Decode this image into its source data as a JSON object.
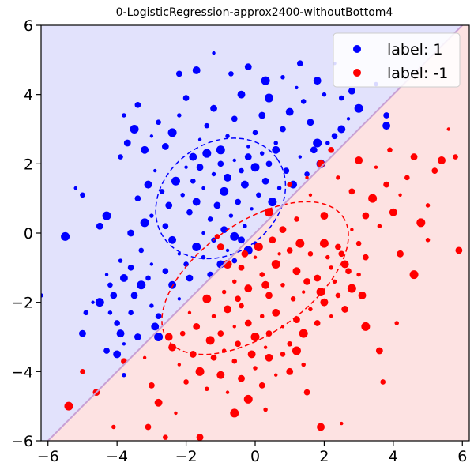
{
  "chart_data": {
    "type": "scatter",
    "title": "0-LogisticRegression-approx2400-withoutBottom4",
    "xlim": [
      -6.2,
      6.2
    ],
    "ylim": [
      -6,
      6
    ],
    "xticks": [
      -6,
      -4,
      -2,
      0,
      2,
      4,
      6
    ],
    "yticks": [
      -6,
      -4,
      -2,
      0,
      2,
      4,
      6
    ],
    "xtick_labels": [
      "−6",
      "−4",
      "−2",
      "0",
      "2",
      "4",
      "6"
    ],
    "ytick_labels": [
      "−6",
      "−4",
      "−2",
      "0",
      "2",
      "4",
      "6"
    ],
    "grid": false,
    "legend_position": "top-right",
    "decision_boundary": {
      "x": [
        -6.2,
        6.2
      ],
      "y": [
        -6.2,
        6.2
      ],
      "color": "#c8a0d4"
    },
    "regions": [
      {
        "side": "upper-left",
        "color": "#e2e2fc"
      },
      {
        "side": "lower-right",
        "color": "#fde2e2"
      }
    ],
    "series": [
      {
        "name": "label: 1",
        "color": "#0000ff",
        "center": [
          -1.0,
          1.0
        ],
        "ellipse": {
          "cx": -1.0,
          "cy": 1.0,
          "rx": 2.0,
          "ry": 1.6,
          "angle_deg": 35
        },
        "points": [
          [
            -5.2,
            1.3
          ],
          [
            -5.0,
            1.1
          ],
          [
            -4.5,
            0.2
          ],
          [
            -4.3,
            0.5
          ],
          [
            -3.9,
            -0.8
          ],
          [
            -3.6,
            -1.0
          ],
          [
            -3.8,
            -1.3
          ],
          [
            -4.3,
            -1.2
          ],
          [
            -4.2,
            -1.5
          ],
          [
            -4.1,
            -1.8
          ],
          [
            -4.5,
            -2.0
          ],
          [
            -4.2,
            -2.3
          ],
          [
            -4.0,
            -2.6
          ],
          [
            -3.9,
            -2.9
          ],
          [
            -4.7,
            -2.0
          ],
          [
            -4.9,
            -2.3
          ],
          [
            -5.0,
            -2.9
          ],
          [
            -5.5,
            -0.1
          ],
          [
            -6.2,
            -1.8
          ],
          [
            -4.3,
            -3.4
          ],
          [
            -4.0,
            -3.5
          ],
          [
            -3.8,
            -3.2
          ],
          [
            -3.6,
            -2.3
          ],
          [
            -3.5,
            -1.8
          ],
          [
            -3.3,
            -1.5
          ],
          [
            -3.0,
            -2.1
          ],
          [
            -2.8,
            -2.4
          ],
          [
            -2.9,
            -2.7
          ],
          [
            -3.0,
            -0.9
          ],
          [
            -3.3,
            -0.5
          ],
          [
            -3.6,
            0.0
          ],
          [
            -3.2,
            0.3
          ],
          [
            -3.0,
            0.5
          ],
          [
            -2.6,
            0.2
          ],
          [
            -2.4,
            -0.2
          ],
          [
            -2.2,
            -0.6
          ],
          [
            -2.0,
            -0.9
          ],
          [
            -1.9,
            -1.3
          ],
          [
            -1.7,
            -0.4
          ],
          [
            -1.5,
            -0.7
          ],
          [
            -1.3,
            -1.2
          ],
          [
            -1.0,
            -0.9
          ],
          [
            -0.8,
            -0.5
          ],
          [
            -0.6,
            -0.8
          ],
          [
            -0.4,
            -0.2
          ],
          [
            -0.2,
            -0.5
          ],
          [
            0.0,
            -0.3
          ],
          [
            -3.4,
            1.0
          ],
          [
            -3.1,
            1.4
          ],
          [
            -2.9,
            1.8
          ],
          [
            -2.7,
            1.2
          ],
          [
            -2.5,
            0.8
          ],
          [
            -2.3,
            1.5
          ],
          [
            -2.1,
            1.1
          ],
          [
            -1.9,
            0.6
          ],
          [
            -1.7,
            0.9
          ],
          [
            -1.5,
            1.3
          ],
          [
            -1.3,
            0.4
          ],
          [
            -1.1,
            0.8
          ],
          [
            -0.9,
            1.2
          ],
          [
            -0.7,
            0.5
          ],
          [
            -0.5,
            0.9
          ],
          [
            -0.3,
            1.4
          ],
          [
            -0.1,
            0.7
          ],
          [
            0.1,
            1.1
          ],
          [
            0.3,
            1.5
          ],
          [
            0.5,
            0.9
          ],
          [
            0.7,
            1.3
          ],
          [
            0.9,
            1.8
          ],
          [
            1.1,
            1.4
          ],
          [
            1.3,
            2.2
          ],
          [
            1.5,
            1.7
          ],
          [
            1.7,
            2.4
          ],
          [
            1.9,
            2.0
          ],
          [
            2.1,
            2.6
          ],
          [
            2.3,
            2.8
          ],
          [
            2.5,
            3.0
          ],
          [
            2.7,
            3.3
          ],
          [
            -3.9,
            2.2
          ],
          [
            -3.7,
            2.6
          ],
          [
            -3.5,
            3.0
          ],
          [
            -3.8,
            3.4
          ],
          [
            -3.4,
            3.7
          ],
          [
            -3.2,
            2.4
          ],
          [
            -3.0,
            2.8
          ],
          [
            -2.8,
            3.2
          ],
          [
            -2.6,
            2.5
          ],
          [
            -2.4,
            2.9
          ],
          [
            -2.2,
            3.4
          ],
          [
            -2.0,
            3.9
          ],
          [
            -1.8,
            2.2
          ],
          [
            -1.6,
            2.7
          ],
          [
            -1.4,
            3.1
          ],
          [
            -1.2,
            3.6
          ],
          [
            -1.0,
            2.4
          ],
          [
            -0.8,
            2.8
          ],
          [
            -0.6,
            3.3
          ],
          [
            -0.4,
            4.0
          ],
          [
            -0.2,
            2.5
          ],
          [
            0.0,
            2.9
          ],
          [
            0.2,
            3.4
          ],
          [
            0.4,
            3.9
          ],
          [
            0.6,
            2.6
          ],
          [
            0.8,
            3.0
          ],
          [
            1.0,
            3.5
          ],
          [
            1.2,
            4.2
          ],
          [
            1.4,
            3.8
          ],
          [
            1.6,
            3.2
          ],
          [
            1.8,
            2.6
          ],
          [
            2.0,
            4.0
          ],
          [
            -2.2,
            4.6
          ],
          [
            -1.7,
            4.7
          ],
          [
            -1.2,
            5.2
          ],
          [
            -0.7,
            4.6
          ],
          [
            -0.2,
            4.8
          ],
          [
            0.3,
            4.4
          ],
          [
            0.8,
            4.5
          ],
          [
            1.3,
            4.9
          ],
          [
            1.8,
            4.4
          ],
          [
            2.3,
            4.9
          ],
          [
            2.5,
            3.9
          ],
          [
            2.8,
            4.1
          ],
          [
            3.0,
            3.6
          ],
          [
            3.5,
            4.3
          ],
          [
            3.8,
            3.4
          ],
          [
            3.8,
            3.1
          ],
          [
            -2.0,
            1.9
          ],
          [
            -1.8,
            1.5
          ],
          [
            -1.6,
            1.9
          ],
          [
            -1.4,
            2.3
          ],
          [
            -1.2,
            1.7
          ],
          [
            -1.0,
            2.0
          ],
          [
            -0.8,
            1.6
          ],
          [
            -0.6,
            2.1
          ],
          [
            -0.4,
            1.8
          ],
          [
            -0.2,
            2.2
          ],
          [
            0.0,
            1.9
          ],
          [
            0.2,
            2.3
          ],
          [
            0.4,
            2.0
          ],
          [
            0.6,
            2.4
          ],
          [
            -1.5,
            0.0
          ],
          [
            -1.2,
            -0.2
          ],
          [
            -0.9,
            0.1
          ],
          [
            -0.6,
            -0.1
          ],
          [
            -0.3,
            0.2
          ],
          [
            -2.6,
            -1.1
          ],
          [
            -2.4,
            -1.5
          ],
          [
            -2.2,
            -1.9
          ],
          [
            -3.1,
            -1.3
          ],
          [
            -3.4,
            -3.0
          ],
          [
            -2.8,
            -3.0
          ],
          [
            -3.8,
            -4.1
          ]
        ]
      },
      {
        "name": "label: -1",
        "color": "#ff0000",
        "center": [
          0.0,
          -1.3
        ],
        "ellipse": {
          "cx": 0.0,
          "cy": -1.3,
          "rx": 3.1,
          "ry": 1.6,
          "angle_deg": 35
        },
        "points": [
          [
            -1.0,
            -0.4
          ],
          [
            -0.8,
            -0.9
          ],
          [
            -0.6,
            -1.4
          ],
          [
            -0.4,
            -1.0
          ],
          [
            -0.2,
            -1.6
          ],
          [
            0.0,
            -0.7
          ],
          [
            0.2,
            -1.2
          ],
          [
            0.4,
            -1.8
          ],
          [
            0.6,
            -0.9
          ],
          [
            0.8,
            -1.5
          ],
          [
            1.0,
            -0.5
          ],
          [
            1.2,
            -1.1
          ],
          [
            1.4,
            -1.7
          ],
          [
            1.6,
            -0.6
          ],
          [
            1.8,
            -1.3
          ],
          [
            2.0,
            -0.3
          ],
          [
            2.2,
            -1.0
          ],
          [
            2.4,
            -0.4
          ],
          [
            2.6,
            -0.9
          ],
          [
            2.8,
            0.1
          ],
          [
            3.0,
            -0.3
          ],
          [
            3.2,
            0.5
          ],
          [
            3.4,
            1.0
          ],
          [
            3.6,
            0.2
          ],
          [
            3.8,
            1.4
          ],
          [
            4.0,
            0.6
          ],
          [
            4.2,
            1.1
          ],
          [
            4.4,
            1.6
          ],
          [
            4.6,
            2.2
          ],
          [
            4.8,
            0.3
          ],
          [
            5.0,
            -0.2
          ],
          [
            5.2,
            1.8
          ],
          [
            5.4,
            2.1
          ],
          [
            5.6,
            3.0
          ],
          [
            5.8,
            2.2
          ],
          [
            5.9,
            -0.5
          ],
          [
            -1.4,
            -1.9
          ],
          [
            -1.2,
            -2.4
          ],
          [
            -1.0,
            -2.9
          ],
          [
            -0.8,
            -2.2
          ],
          [
            -0.6,
            -2.7
          ],
          [
            -0.4,
            -2.1
          ],
          [
            -0.2,
            -2.6
          ],
          [
            0.0,
            -3.0
          ],
          [
            0.2,
            -2.4
          ],
          [
            0.4,
            -2.9
          ],
          [
            0.6,
            -2.3
          ],
          [
            0.8,
            -2.7
          ],
          [
            1.0,
            -3.2
          ],
          [
            1.2,
            -2.5
          ],
          [
            1.4,
            -2.9
          ],
          [
            1.6,
            -2.2
          ],
          [
            1.8,
            -2.6
          ],
          [
            2.0,
            -2.0
          ],
          [
            2.2,
            -2.4
          ],
          [
            2.4,
            -1.8
          ],
          [
            2.6,
            -2.2
          ],
          [
            2.8,
            -1.6
          ],
          [
            3.0,
            -1.2
          ],
          [
            3.2,
            -0.7
          ],
          [
            -2.4,
            -3.3
          ],
          [
            -2.2,
            -3.8
          ],
          [
            -2.0,
            -4.3
          ],
          [
            -1.8,
            -3.5
          ],
          [
            -1.6,
            -4.0
          ],
          [
            -1.4,
            -4.5
          ],
          [
            -1.2,
            -3.6
          ],
          [
            -1.0,
            -4.1
          ],
          [
            -0.8,
            -4.6
          ],
          [
            -0.6,
            -3.7
          ],
          [
            -0.4,
            -4.2
          ],
          [
            -0.2,
            -4.8
          ],
          [
            0.0,
            -3.9
          ],
          [
            0.2,
            -4.4
          ],
          [
            0.4,
            -3.6
          ],
          [
            0.6,
            -4.1
          ],
          [
            0.8,
            -3.5
          ],
          [
            1.0,
            -4.0
          ],
          [
            1.2,
            -3.4
          ],
          [
            1.4,
            -3.8
          ],
          [
            -3.0,
            -4.4
          ],
          [
            -2.8,
            -4.9
          ],
          [
            -2.3,
            -5.2
          ],
          [
            -2.6,
            -5.9
          ],
          [
            -1.6,
            -5.9
          ],
          [
            -0.6,
            -5.2
          ],
          [
            0.3,
            -5.1
          ],
          [
            1.5,
            -4.6
          ],
          [
            1.9,
            -5.6
          ],
          [
            2.5,
            -5.5
          ],
          [
            3.7,
            -4.3
          ],
          [
            3.6,
            -3.4
          ],
          [
            3.2,
            -2.7
          ],
          [
            4.1,
            -2.6
          ],
          [
            2.5,
            -0.6
          ],
          [
            2.0,
            0.5
          ],
          [
            1.6,
            1.1
          ],
          [
            1.2,
            0.4
          ],
          [
            0.8,
            0.1
          ],
          [
            0.4,
            0.6
          ],
          [
            2.4,
            1.6
          ],
          [
            2.8,
            1.2
          ],
          [
            3.0,
            2.1
          ],
          [
            3.5,
            1.9
          ],
          [
            3.9,
            2.4
          ],
          [
            4.2,
            -0.6
          ],
          [
            4.6,
            -1.2
          ],
          [
            5.0,
            0.8
          ],
          [
            2.2,
            2.4
          ],
          [
            1.9,
            2.0
          ],
          [
            1.5,
            1.6
          ],
          [
            1.0,
            1.4
          ],
          [
            -0.3,
            -0.6
          ],
          [
            0.1,
            -0.4
          ],
          [
            -0.9,
            -1.7
          ],
          [
            -0.5,
            -1.9
          ],
          [
            0.3,
            -1.5
          ],
          [
            0.7,
            -0.6
          ],
          [
            1.1,
            -1.9
          ],
          [
            1.5,
            -1.4
          ],
          [
            1.9,
            -1.7
          ],
          [
            2.3,
            -1.4
          ],
          [
            2.7,
            -1.1
          ],
          [
            3.1,
            -1.8
          ],
          [
            -1.9,
            -2.3
          ],
          [
            -2.1,
            -2.9
          ],
          [
            -1.7,
            -2.7
          ],
          [
            -1.3,
            -3.1
          ],
          [
            -0.9,
            -3.4
          ],
          [
            -0.5,
            -3.2
          ],
          [
            -0.1,
            -3.5
          ],
          [
            0.3,
            -3.3
          ],
          [
            -1.1,
            -0.1
          ],
          [
            0.5,
            -0.2
          ],
          [
            1.3,
            -0.3
          ],
          [
            2.1,
            -0.7
          ],
          [
            -3.8,
            -3.7
          ],
          [
            -2.5,
            -3.0
          ],
          [
            -3.2,
            -3.6
          ],
          [
            -5.0,
            -4.0
          ],
          [
            -4.6,
            -4.6
          ],
          [
            -5.4,
            -5.0
          ],
          [
            -4.1,
            -5.6
          ],
          [
            -3.1,
            -5.6
          ]
        ]
      }
    ]
  }
}
